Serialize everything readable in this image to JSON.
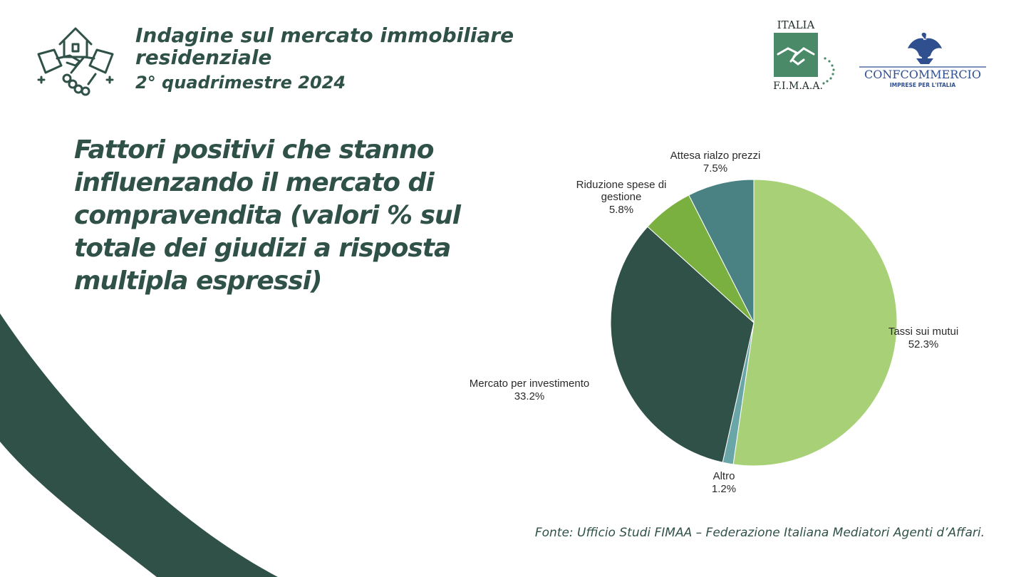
{
  "header": {
    "title": "Indagine sul mercato immobiliare residenziale",
    "subtitle": "2° quadrimestre 2024",
    "icon": "house-handshake-icon"
  },
  "logos": {
    "fimaa_top": "ITALIA",
    "fimaa_bottom": "F.I.M.A.A.",
    "confcommercio_name": "CONFCOMMERCIO",
    "confcommercio_tagline": "IMPRESE PER L'ITALIA"
  },
  "source": "Fonte: Ufficio Studi FIMAA – Federazione Italiana Mediatori Agenti d’Affari.",
  "colors": {
    "primary": "#2f5148",
    "light_green": "#a8d177",
    "mid_green": "#79b03f",
    "teal": "#4a8182",
    "light_teal": "#6aa6a8",
    "dark_green": "#2f5148"
  },
  "chart_data": {
    "type": "pie",
    "title": "Fattori positivi che stanno influenzando il mercato di compravendita (valori % sul totale dei giudizi a risposta multipla espressi)",
    "start": "12 o'clock",
    "direction": "clockwise",
    "slices": [
      {
        "label": "Tassi sui mutui",
        "value": 52.3,
        "value_label": "52.3%",
        "color": "#a8d177"
      },
      {
        "label": "Altro",
        "value": 1.2,
        "value_label": "1.2%",
        "color": "#6aa6a8"
      },
      {
        "label": "Mercato per investimento",
        "value": 33.2,
        "value_label": "33.2%",
        "color": "#2f5148"
      },
      {
        "label": "Riduzione spese di gestione",
        "value": 5.8,
        "value_label": "5.8%",
        "color": "#79b03f"
      },
      {
        "label": "Attesa rialzo prezzi",
        "value": 7.5,
        "value_label": "7.5%",
        "color": "#4a8182"
      }
    ]
  }
}
